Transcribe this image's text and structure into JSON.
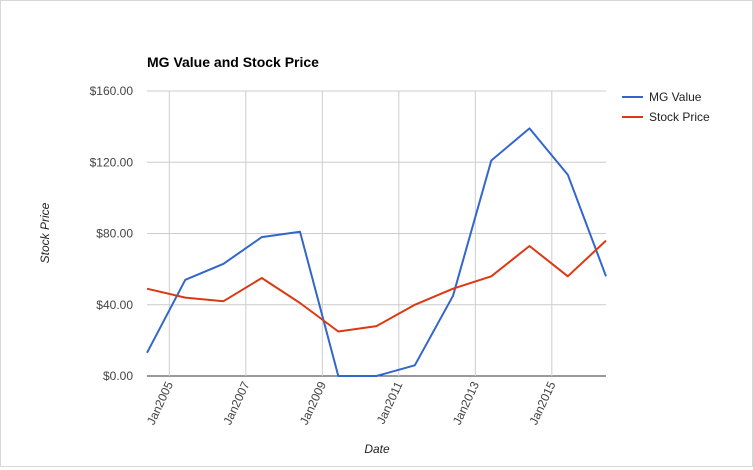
{
  "chart_data": {
    "type": "line",
    "title": "MG Value and Stock Price",
    "xlabel": "Date",
    "ylabel": "Stock Price",
    "x": [
      "2004-06",
      "2005-06",
      "2006-06",
      "2007-06",
      "2008-06",
      "2009-06",
      "2010-06",
      "2011-06",
      "2012-06",
      "2013-06",
      "2014-06",
      "2015-06",
      "2016-06"
    ],
    "x_ticks": [
      "Jan2005",
      "Jan2007",
      "Jan2009",
      "Jan2011",
      "Jan2013",
      "Jan2015"
    ],
    "y_ticks": [
      "$0.00",
      "$40.00",
      "$80.00",
      "$120.00",
      "$160.00"
    ],
    "ylim": [
      0,
      160
    ],
    "grid": true,
    "legend_position": "right",
    "series": [
      {
        "name": "MG Value",
        "color": "#3366cc",
        "values": [
          13,
          54,
          63,
          78,
          81,
          0,
          0,
          6,
          45,
          121,
          139,
          113,
          56
        ]
      },
      {
        "name": "Stock Price",
        "color": "#dc3912",
        "values": [
          49,
          44,
          42,
          55,
          41,
          25,
          28,
          40,
          49,
          56,
          73,
          56,
          76
        ]
      }
    ]
  }
}
